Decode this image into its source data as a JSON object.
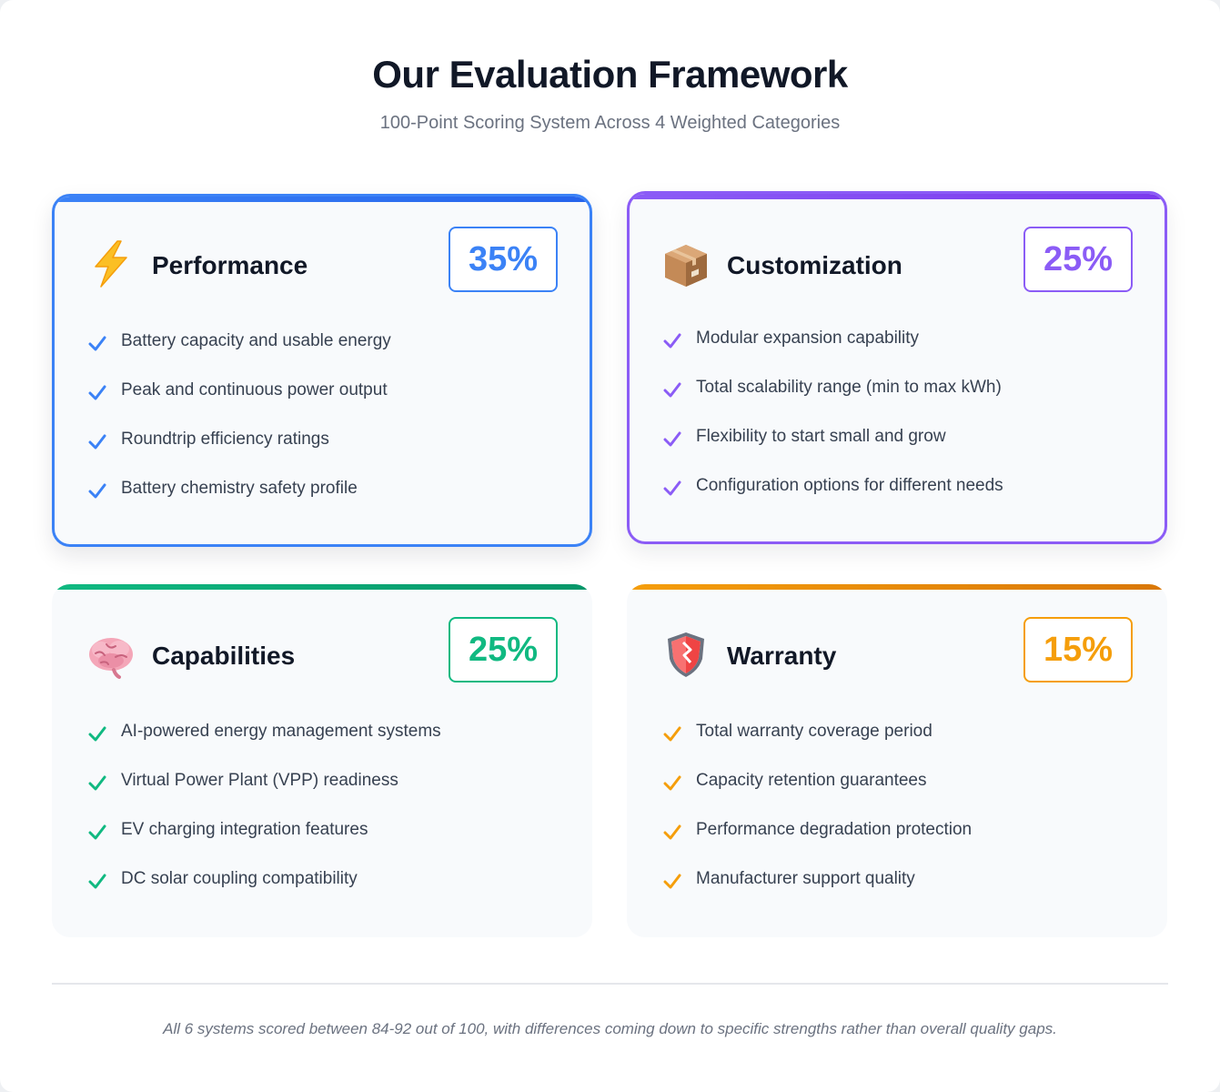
{
  "header": {
    "title": "Our Evaluation Framework",
    "subtitle": "100-Point Scoring System Across 4 Weighted Categories"
  },
  "categories": [
    {
      "title": "Performance",
      "percent": "35%",
      "icon": "lightning-icon",
      "color": "#3b82f6",
      "items": [
        "Battery capacity and usable energy",
        "Peak and continuous power output",
        "Roundtrip efficiency ratings",
        "Battery chemistry safety profile"
      ]
    },
    {
      "title": "Customization",
      "percent": "25%",
      "icon": "package-icon",
      "color": "#8b5cf6",
      "items": [
        "Modular expansion capability",
        "Total scalability range (min to max kWh)",
        "Flexibility to start small and grow",
        "Configuration options for different needs"
      ]
    },
    {
      "title": "Capabilities",
      "percent": "25%",
      "icon": "brain-icon",
      "color": "#10b981",
      "items": [
        "AI-powered energy management systems",
        "Virtual Power Plant (VPP) readiness",
        "EV charging integration features",
        "DC solar coupling compatibility"
      ]
    },
    {
      "title": "Warranty",
      "percent": "15%",
      "icon": "shield-icon",
      "color": "#f59e0b",
      "items": [
        "Total warranty coverage period",
        "Capacity retention guarantees",
        "Performance degradation protection",
        "Manufacturer support quality"
      ]
    }
  ],
  "footnote": "All 6 systems scored between 84-92 out of 100, with differences coming down to specific strengths rather than overall quality gaps."
}
